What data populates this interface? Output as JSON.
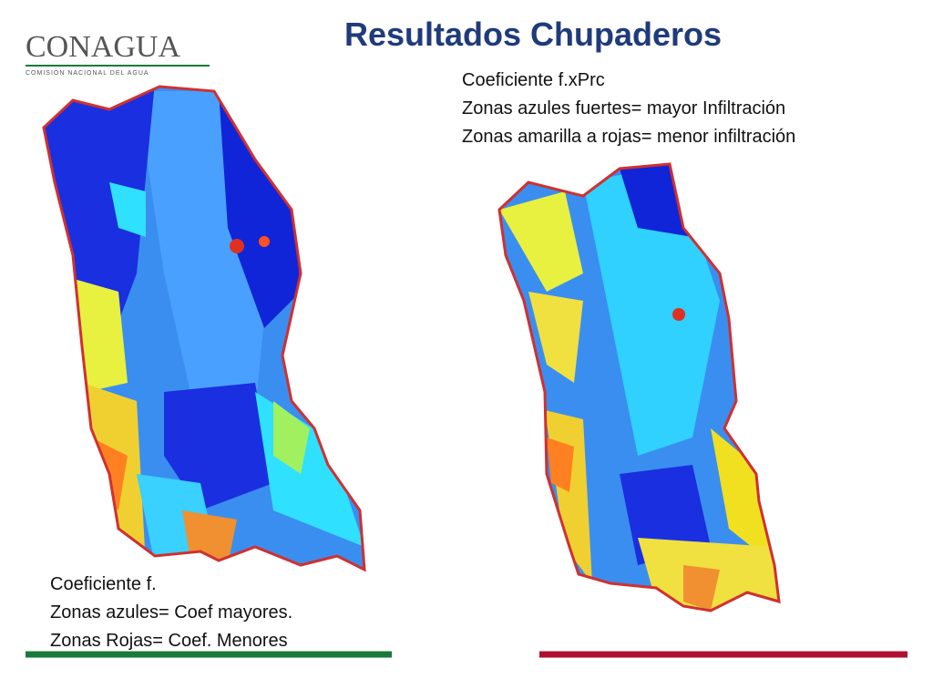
{
  "header": {
    "logo": "CONAGUA",
    "logo_subtitle": "COMISIÓN NACIONAL DEL AGUA",
    "title": "Resultados  Chupaderos"
  },
  "captions": {
    "right": [
      "Coeficiente f.xPrc",
      "Zonas azules fuertes= mayor Infiltración",
      "Zonas amarilla a rojas= menor infiltración"
    ],
    "left": [
      "Coeficiente f.",
      "Zonas azules= Coef mayores.",
      "Zonas Rojas= Coef. Menores"
    ]
  }
}
